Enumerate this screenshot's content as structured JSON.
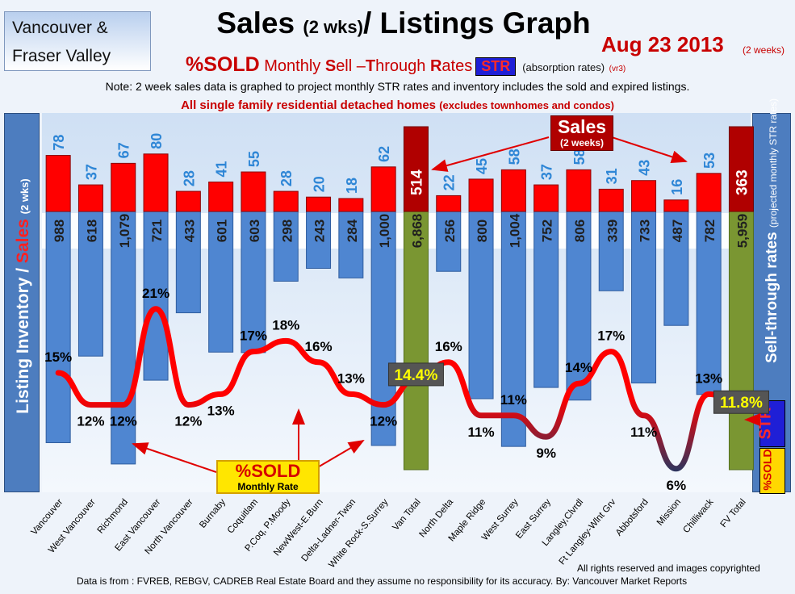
{
  "region": {
    "line1": "Vancouver &",
    "line2": "Fraser Valley"
  },
  "title": {
    "main": "Sales",
    "wks": "(2 wks)",
    "rest": "/ Listings Graph"
  },
  "date": {
    "text": "Aug 23 2013",
    "note": "(2 weeks)"
  },
  "subtitle": {
    "sold": "%SOLD",
    "s1": "Monthly ",
    "S": "S",
    "s2": "ell –",
    "T": "T",
    "s3": "hrough ",
    "R": "R",
    "s4": "ates",
    "str": "STR",
    "absorption": "(absorption rates)",
    "version": "(vr3)"
  },
  "note": "Note: 2 week sales data is graphed to project monthly STR rates and inventory includes the sold and expired listings.",
  "homes": {
    "main": "All single family residential detached homes",
    "paren": "(excludes townhomes and condos)"
  },
  "left_axis": {
    "a": "Listing Inventory / ",
    "b": "Sales",
    "c": "(2 wks)"
  },
  "right_axis": {
    "a": "Sell-through rates",
    "b": "(projected monthly STR rates)"
  },
  "side_badges": {
    "str": "STR",
    "sold": "%SOLD"
  },
  "sales_callout": {
    "a": "Sales",
    "b": "(2 weeks)"
  },
  "sold_callout": {
    "a": "%SOLD",
    "b": "Monthly Rate"
  },
  "footer": {
    "rights": "All rights reserved and  images copyrighted",
    "source": "Data is from : FVREB, REBGV, CADREB Real Estate Board and they assume no responsibility for its accuracy. By: Vancouver Market Reports"
  },
  "colors": {
    "sales": "#ff0000",
    "inventory": "#4f86d1",
    "total": "#7a9632",
    "total_sales": "#b00000",
    "str_high": "#ff0000",
    "str_low": "#1f3864"
  },
  "chart_data": {
    "type": "bar",
    "categories": [
      "Vancouver",
      "West Vancouver",
      "Richmond",
      "East Vancouver",
      "North Vancouver",
      "Burnaby",
      "Coquitlam",
      "P.Coq, P.Moody",
      "NewWest-E.Burn",
      "Delta-Ladner-Twsn",
      "White Rock-S.Surrey",
      "Van Total",
      "North Delta",
      "Maple Ridge",
      "West Surrey",
      "East Surrey",
      "Langley,Clvrdl",
      "Ft Langley-Wlnt Grv",
      "Abbotsford",
      "Mission",
      "Chilliwack",
      "FV Total"
    ],
    "series": [
      {
        "name": "Sales (2 weeks)",
        "values": [
          78,
          37,
          67,
          80,
          28,
          41,
          55,
          28,
          20,
          18,
          62,
          514,
          22,
          45,
          58,
          37,
          58,
          31,
          43,
          16,
          53,
          363
        ],
        "labels": [
          "78",
          "37",
          "67",
          "80",
          "28",
          "41",
          "55",
          "28",
          "20",
          "18",
          "62",
          "514",
          "22",
          "45",
          "58",
          "37",
          "58",
          "31",
          "43",
          "16",
          "53",
          "363"
        ]
      },
      {
        "name": "Listing Inventory",
        "values": [
          988,
          618,
          1079,
          721,
          433,
          601,
          603,
          298,
          243,
          284,
          1000,
          6868,
          256,
          800,
          1004,
          752,
          806,
          339,
          733,
          487,
          782,
          5959
        ],
        "labels": [
          "988",
          "618",
          "1,079",
          "721",
          "433",
          "601",
          "603",
          "298",
          "243",
          "284",
          "1,000",
          "6,868",
          "256",
          "800",
          "1,004",
          "752",
          "806",
          "339",
          "733",
          "487",
          "782",
          "5,959"
        ]
      },
      {
        "name": "%SOLD Monthly Sell-Through Rate",
        "values": [
          15,
          12,
          12,
          21,
          12,
          13,
          17,
          18,
          16,
          13,
          12,
          14.4,
          16,
          11,
          11,
          9,
          14,
          17,
          11,
          6,
          13,
          11.8
        ],
        "labels": [
          "15%",
          "12%",
          "12%",
          "21%",
          "12%",
          "13%",
          "17%",
          "18%",
          "16%",
          "13%",
          "12%",
          "14.4%",
          "16%",
          "11%",
          "11%",
          "9%",
          "14%",
          "17%",
          "11%",
          "6%",
          "13%",
          "11.8%"
        ]
      }
    ],
    "totals": [
      "Van Total",
      "FV Total"
    ],
    "title": "Sales (2 wks)/ Listings Graph",
    "ylabel": "Listing Inventory / Sales (2 wks)",
    "y2label": "Sell-through rates (projected monthly STR rates)"
  }
}
